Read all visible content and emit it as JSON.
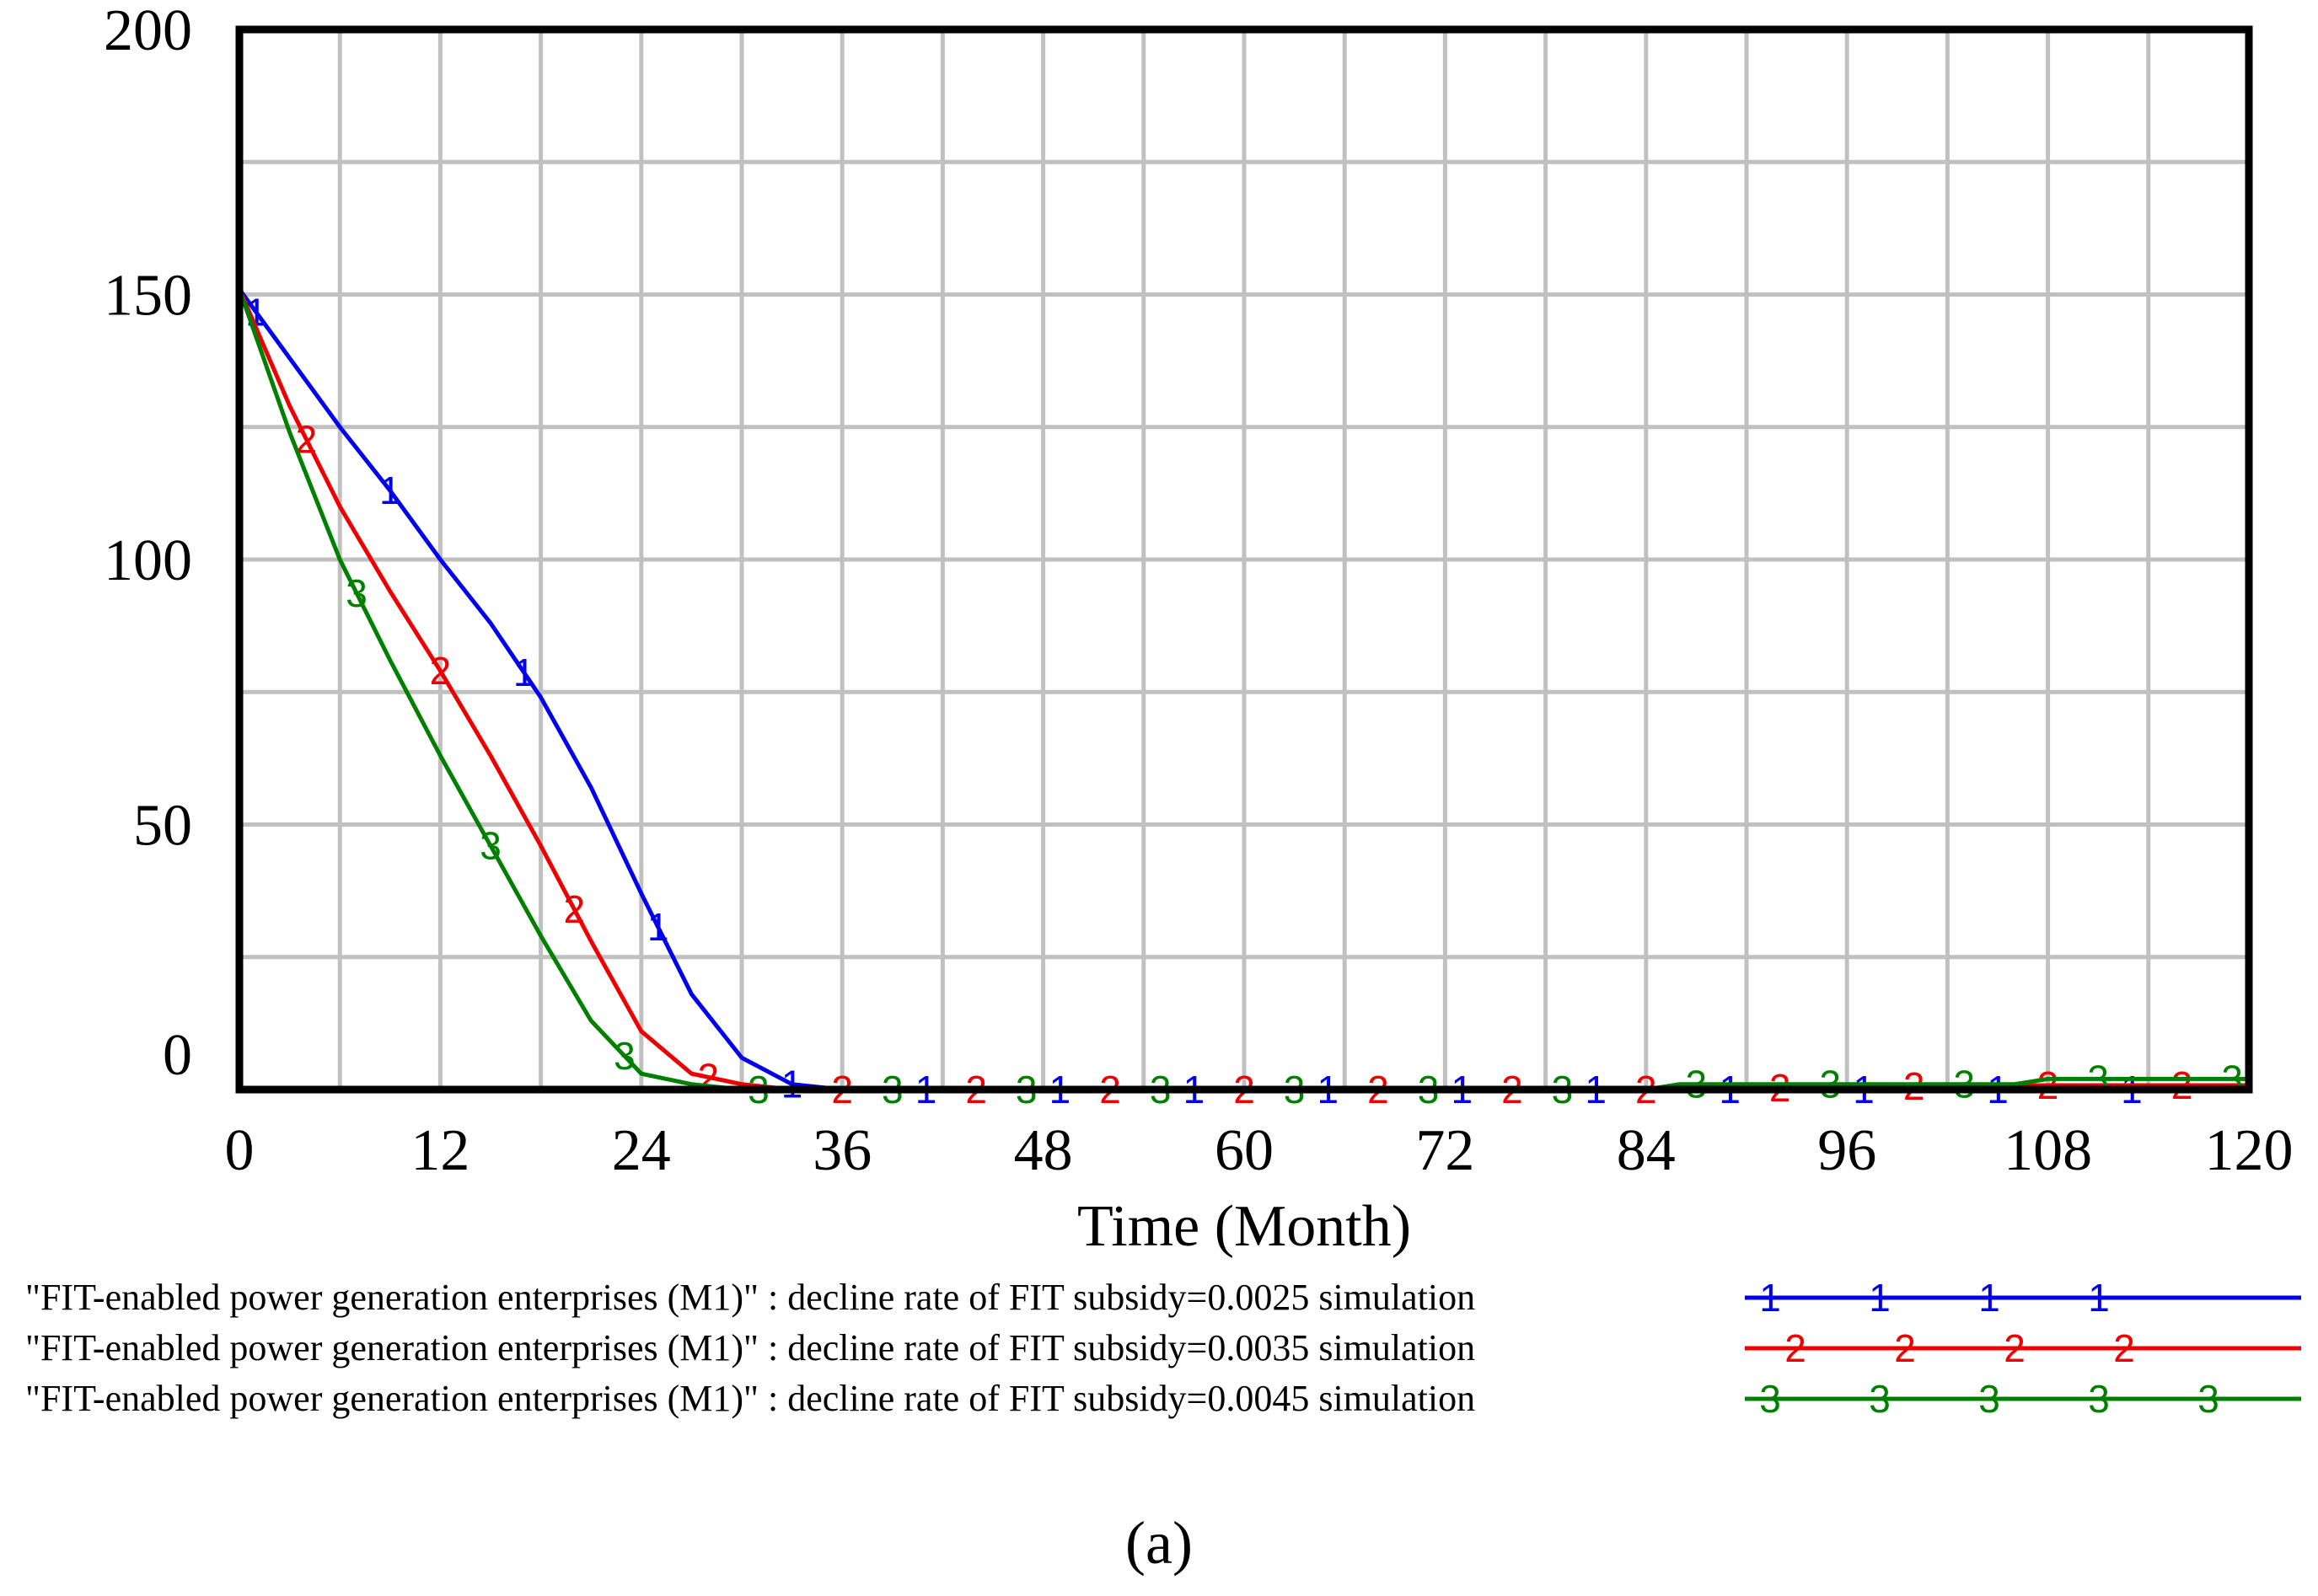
{
  "chart_data": {
    "type": "line",
    "title": "",
    "xlabel": "Time (Month)",
    "ylabel": "",
    "xlim": [
      0,
      120
    ],
    "ylim": [
      0,
      200
    ],
    "xticks": [
      0,
      12,
      24,
      36,
      48,
      60,
      72,
      84,
      96,
      108,
      120
    ],
    "yticks": [
      0,
      50,
      100,
      150,
      200
    ],
    "grid": true,
    "series": [
      {
        "name": "\"FIT-enabled power generation enterprises (M1)\" : decline rate of FIT  subsidy=0.0025 simulation",
        "marker": "1",
        "color": "#0000ee",
        "x": [
          0,
          3,
          6,
          9,
          12,
          15,
          18,
          21,
          24,
          27,
          30,
          33,
          36,
          60,
          84,
          96,
          108,
          120
        ],
        "values": [
          151,
          138,
          125,
          113,
          100,
          88,
          74,
          57,
          37,
          18,
          6,
          1,
          0,
          0,
          0,
          0,
          0,
          0
        ]
      },
      {
        "name": "\"FIT-enabled power generation enterprises (M1)\" : decline rate of FIT  subsidy=0.0035 simulation",
        "marker": "2",
        "color": "#ee0000",
        "x": [
          0,
          3,
          6,
          9,
          12,
          15,
          18,
          21,
          24,
          27,
          30,
          33,
          36,
          60,
          84,
          96,
          108,
          120
        ],
        "values": [
          151,
          129,
          110,
          94,
          79,
          63,
          46,
          28,
          11,
          3,
          1,
          0,
          0,
          0,
          0,
          0.5,
          0.8,
          0.8
        ]
      },
      {
        "name": "\"FIT-enabled power generation enterprises (M1)\" : decline rate of FIT  subsidy=0.0045 simulation",
        "marker": "3",
        "color": "#008000",
        "x": [
          0,
          3,
          6,
          9,
          12,
          15,
          18,
          21,
          24,
          27,
          30,
          33,
          36,
          60,
          84,
          86,
          96,
          106,
          108,
          120
        ],
        "values": [
          151,
          124,
          100,
          81,
          63,
          46,
          29,
          13,
          3,
          1,
          0,
          0,
          0,
          0,
          0,
          1,
          1,
          1,
          2,
          2
        ]
      }
    ]
  },
  "caption": "(a)"
}
